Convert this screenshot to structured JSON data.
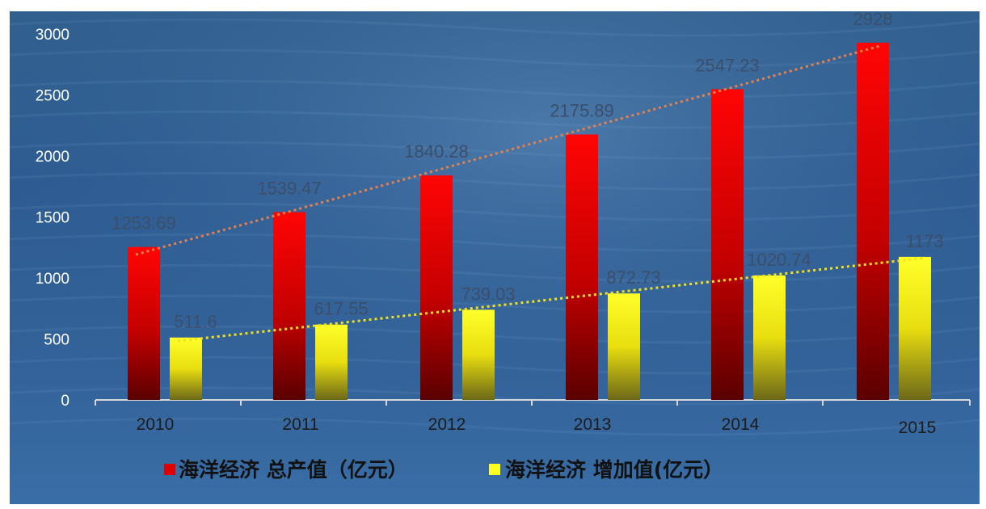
{
  "chart_data": {
    "type": "bar",
    "categories": [
      "2010",
      "2011",
      "2012",
      "2013",
      "2014",
      "2015"
    ],
    "series": [
      {
        "name": "海洋经济 总产值（亿元）",
        "values": [
          1253.69,
          1539.47,
          1840.28,
          2175.89,
          2547.23,
          2928
        ],
        "labels": [
          "1253.69",
          "1539.47",
          "1840.28",
          "2175.89",
          "2547.23",
          "2928"
        ],
        "color": "#e00000",
        "trendline_color": "#e8804a"
      },
      {
        "name": "海洋经济 增加值(亿元）",
        "values": [
          511.6,
          617.55,
          739.03,
          872.73,
          1020.74,
          1173
        ],
        "labels": [
          "511.6",
          "617.55",
          "739.03",
          "872.73",
          "1020.74",
          "1173"
        ],
        "color": "#ffff20",
        "trendline_color": "#f2e21a"
      }
    ],
    "y_ticks": [
      "0",
      "500",
      "1000",
      "1500",
      "2000",
      "2500",
      "3000"
    ],
    "ylim": [
      0,
      3000
    ],
    "trendlines": true,
    "grid": false,
    "legend_position": "bottom",
    "background": "underwater-blue",
    "title": "",
    "xlabel": "",
    "ylabel": ""
  }
}
